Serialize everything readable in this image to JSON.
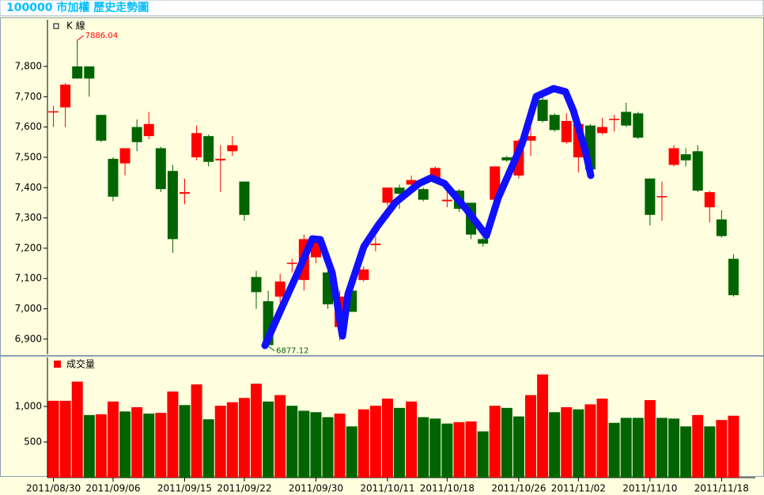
{
  "title": "100000 市加權  歷史走勢圖",
  "chart_data": [
    {
      "type": "candlestick",
      "legend": "K 線",
      "open": [
        7648,
        7665,
        7800,
        7800,
        7640,
        7495,
        7480,
        7600,
        7570,
        7530,
        7455,
        7380,
        7500,
        7570,
        7490,
        7520,
        7420,
        7105,
        7025,
        7040,
        7148,
        7095,
        7170,
        7120,
        6940,
        7060,
        7095,
        7210,
        7350,
        7400,
        7410,
        7395,
        7425,
        7355,
        7390,
        7350,
        7230,
        7360,
        7500,
        7440,
        7555,
        7690,
        7640,
        7550,
        7500,
        7605,
        7580,
        7623,
        7650,
        7645,
        7430,
        7368,
        7475,
        7510,
        7520,
        7335,
        7295,
        7165
      ],
      "high": [
        7670,
        7745,
        7886.04,
        7800,
        7640,
        7500,
        7530,
        7625,
        7650,
        7535,
        7475,
        7430,
        7605,
        7575,
        7540,
        7570,
        7420,
        7125,
        7060,
        7115,
        7165,
        7245,
        7240,
        7125,
        7060,
        7065,
        7140,
        7240,
        7400,
        7410,
        7440,
        7400,
        7470,
        7390,
        7395,
        7350,
        7235,
        7470,
        7505,
        7560,
        7600,
        7700,
        7645,
        7645,
        7610,
        7610,
        7630,
        7640,
        7680,
        7650,
        7430,
        7420,
        7540,
        7530,
        7540,
        7390,
        7325,
        7180
      ],
      "low": [
        7600,
        7600,
        7760,
        7700,
        7550,
        7355,
        7440,
        7520,
        7560,
        7385,
        7185,
        7345,
        7490,
        7470,
        7385,
        7505,
        7290,
        7000,
        6877.12,
        7020,
        7120,
        7060,
        7150,
        7000,
        6895,
        6990,
        7090,
        7190,
        7340,
        7330,
        7380,
        7355,
        7420,
        7335,
        7320,
        7230,
        7205,
        7355,
        7485,
        7430,
        7505,
        7615,
        7585,
        7545,
        7450,
        7455,
        7575,
        7585,
        7600,
        7560,
        7275,
        7290,
        7470,
        7470,
        7385,
        7285,
        7235,
        7040
      ],
      "close": [
        7652,
        7740,
        7760,
        7760,
        7555,
        7370,
        7530,
        7550,
        7610,
        7395,
        7230,
        7385,
        7580,
        7485,
        7495,
        7540,
        7310,
        7055,
        6880,
        7090,
        7152,
        7230,
        7230,
        7015,
        7040,
        6990,
        7130,
        7215,
        7400,
        7380,
        7425,
        7360,
        7465,
        7360,
        7330,
        7245,
        7215,
        7470,
        7490,
        7555,
        7570,
        7620,
        7590,
        7620,
        7610,
        7460,
        7600,
        7627,
        7605,
        7565,
        7310,
        7372,
        7530,
        7490,
        7390,
        7385,
        7240,
        7045
      ],
      "up_color": "#ff0000",
      "down_color": "#006400",
      "ylim": [
        6850,
        7954
      ],
      "yticks": [
        {
          "value": 6900,
          "label": "6,900"
        },
        {
          "value": 7000,
          "label": "7,000"
        },
        {
          "value": 7100,
          "label": "7,100"
        },
        {
          "value": 7200,
          "label": "7,200"
        },
        {
          "value": 7300,
          "label": "7,300"
        },
        {
          "value": 7400,
          "label": "7,400"
        },
        {
          "value": 7500,
          "label": "7,500"
        },
        {
          "value": 7600,
          "label": "7,600"
        },
        {
          "value": 7700,
          "label": "7,700"
        },
        {
          "value": 7800,
          "label": "7,800"
        }
      ],
      "annotations": [
        {
          "label": "7886.04",
          "value": 7886.04
        },
        {
          "label": "6877.12",
          "value": 6877.12
        }
      ]
    },
    {
      "type": "bar",
      "legend": "成交量",
      "legend_color": "#ff0000",
      "categories": [
        "2011/08/30",
        null,
        null,
        null,
        null,
        "2011/09/06",
        null,
        null,
        null,
        null,
        null,
        "2011/09/15",
        null,
        null,
        null,
        null,
        "2011/09/22",
        null,
        null,
        null,
        null,
        null,
        "2011/09/30",
        null,
        null,
        null,
        null,
        null,
        "2011/10/11",
        null,
        null,
        null,
        null,
        "2011/10/18",
        null,
        null,
        null,
        null,
        null,
        "2011/10/26",
        null,
        null,
        null,
        null,
        "2011/11/02",
        null,
        null,
        null,
        null,
        null,
        "2011/11/10",
        null,
        null,
        null,
        null,
        null,
        "2011/11/18",
        null
      ],
      "values": [
        1080,
        1080,
        1350,
        880,
        890,
        1070,
        930,
        990,
        900,
        910,
        1210,
        1020,
        1310,
        820,
        1010,
        1060,
        1120,
        1320,
        1070,
        1160,
        1010,
        940,
        920,
        850,
        900,
        720,
        960,
        1010,
        1110,
        980,
        1070,
        850,
        830,
        760,
        780,
        790,
        650,
        1010,
        980,
        860,
        1160,
        1450,
        920,
        990,
        960,
        1030,
        1110,
        770,
        840,
        840,
        1090,
        840,
        830,
        720,
        880,
        720,
        810,
        870
      ],
      "colors": [
        "#ff0000",
        "#ff0000",
        "#ff0000",
        "#006400",
        "#ff0000",
        "#ff0000",
        "#006400",
        "#ff0000",
        "#006400",
        "#ff0000",
        "#ff0000",
        "#006400",
        "#ff0000",
        "#006400",
        "#ff0000",
        "#ff0000",
        "#ff0000",
        "#ff0000",
        "#006400",
        "#ff0000",
        "#006400",
        "#006400",
        "#006400",
        "#006400",
        "#ff0000",
        "#006400",
        "#ff0000",
        "#ff0000",
        "#ff0000",
        "#006400",
        "#ff0000",
        "#006400",
        "#006400",
        "#006400",
        "#ff0000",
        "#ff0000",
        "#006400",
        "#ff0000",
        "#006400",
        "#006400",
        "#ff0000",
        "#ff0000",
        "#006400",
        "#ff0000",
        "#006400",
        "#ff0000",
        "#ff0000",
        "#006400",
        "#006400",
        "#006400",
        "#ff0000",
        "#006400",
        "#006400",
        "#006400",
        "#ff0000",
        "#006400",
        "#ff0000",
        "#ff0000"
      ],
      "ylim": [
        0,
        1690
      ],
      "yticks": [
        500,
        {
          "value": 1000,
          "label": "1,000"
        }
      ]
    }
  ]
}
